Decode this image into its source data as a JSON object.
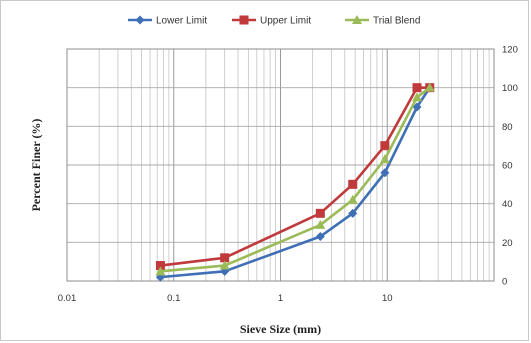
{
  "chart_data": {
    "type": "line",
    "xscale": "log",
    "xlim": [
      0.01,
      100
    ],
    "ylim": [
      0,
      120
    ],
    "xlabel": "Sieve Size (mm)",
    "ylabel": "Percent Finer (%)",
    "x_ticks": [
      "0.01",
      "0.1",
      "1",
      "10"
    ],
    "y_ticks": [
      "0",
      "20",
      "40",
      "60",
      "80",
      "100",
      "120"
    ],
    "y_axis_side": "right",
    "grid": true,
    "legend_position": "top",
    "series": [
      {
        "name": "Lower Limit",
        "color": "#3f6fb5",
        "marker": "diamond",
        "x": [
          0.075,
          0.3,
          2.36,
          4.75,
          9.5,
          19,
          25
        ],
        "y": [
          2,
          5,
          23,
          35,
          56,
          90,
          100
        ]
      },
      {
        "name": "Upper Limit",
        "color": "#c0393b",
        "marker": "square",
        "x": [
          0.075,
          0.3,
          2.36,
          4.75,
          9.5,
          19,
          25
        ],
        "y": [
          8,
          12,
          35,
          50,
          70,
          100,
          100
        ]
      },
      {
        "name": "Trial Blend",
        "color": "#9bbb59",
        "marker": "triangle",
        "x": [
          0.075,
          0.3,
          2.36,
          4.75,
          9.5,
          19,
          25
        ],
        "y": [
          5,
          8,
          29,
          42,
          63,
          95,
          100
        ]
      }
    ]
  }
}
